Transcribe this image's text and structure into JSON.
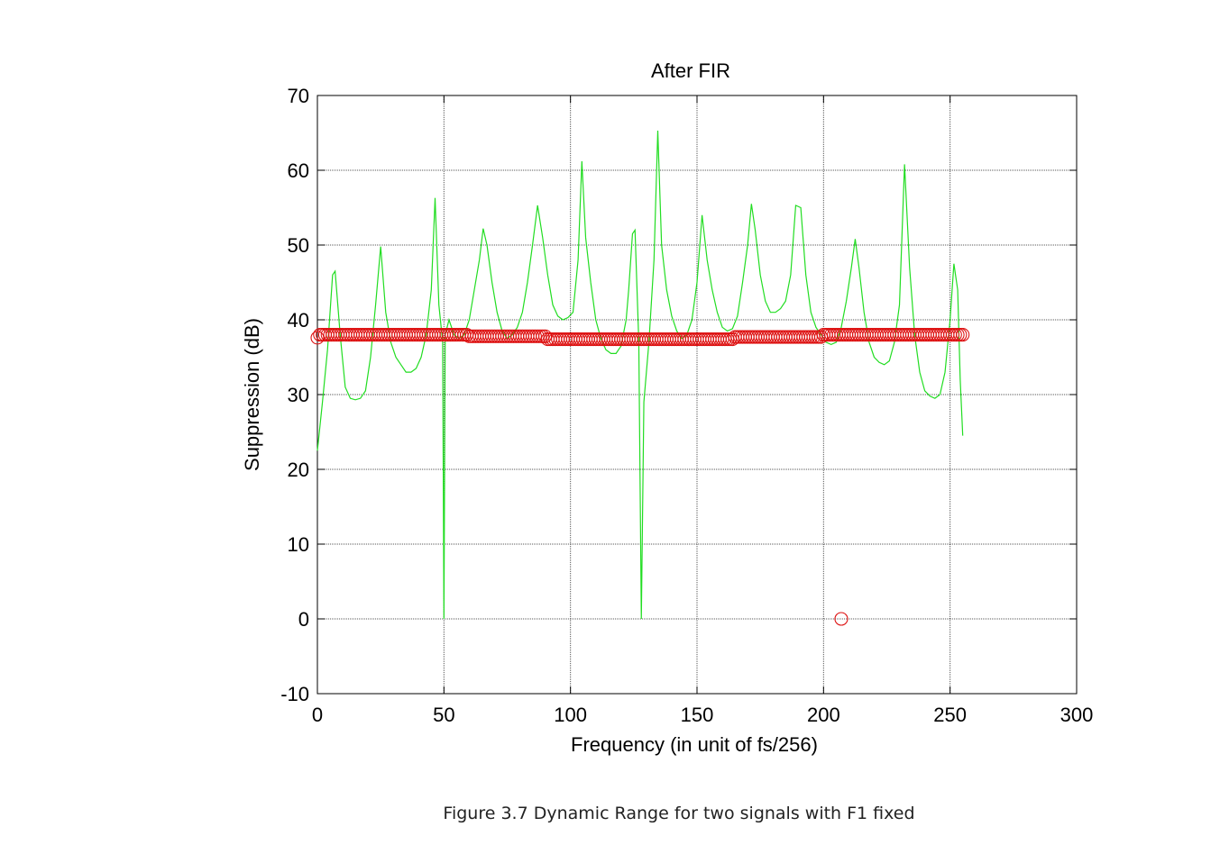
{
  "chart_data": {
    "type": "line",
    "title": "After FIR",
    "xlabel": "Frequency (in unit of fs/256)",
    "ylabel": "Suppression (dB)",
    "xlim": [
      0,
      300
    ],
    "ylim": [
      -10,
      70
    ],
    "xticks": [
      "0",
      "50",
      "100",
      "150",
      "200",
      "250",
      "300"
    ],
    "yticks": [
      "-10",
      "0",
      "10",
      "20",
      "30",
      "40",
      "50",
      "60",
      "70"
    ],
    "grid": true,
    "series": [
      {
        "marker": "line",
        "color": "#22dd22",
        "points": [
          [
            0,
            22.5
          ],
          [
            2,
            29
          ],
          [
            4,
            36
          ],
          [
            6,
            46
          ],
          [
            7,
            46.5
          ],
          [
            9,
            38
          ],
          [
            11,
            31
          ],
          [
            13,
            29.5
          ],
          [
            15,
            29.3
          ],
          [
            17,
            29.5
          ],
          [
            19,
            30.5
          ],
          [
            21,
            35
          ],
          [
            23,
            42
          ],
          [
            25,
            49.8
          ],
          [
            27,
            41
          ],
          [
            29,
            37
          ],
          [
            31,
            35
          ],
          [
            33,
            34
          ],
          [
            35,
            33
          ],
          [
            37,
            33
          ],
          [
            39,
            33.5
          ],
          [
            41,
            35
          ],
          [
            43,
            38
          ],
          [
            45,
            44
          ],
          [
            46.5,
            56.3
          ],
          [
            48,
            42
          ],
          [
            49.5,
            37
          ],
          [
            50,
            0
          ],
          [
            50.5,
            38
          ],
          [
            52,
            40
          ],
          [
            54,
            38
          ],
          [
            56,
            37.5
          ],
          [
            58,
            38
          ],
          [
            60,
            40
          ],
          [
            62,
            44
          ],
          [
            64,
            48
          ],
          [
            65.5,
            52.2
          ],
          [
            67,
            50
          ],
          [
            69,
            45
          ],
          [
            71,
            41
          ],
          [
            73,
            38.5
          ],
          [
            75,
            37.5
          ],
          [
            77,
            38
          ],
          [
            79,
            39
          ],
          [
            81,
            41
          ],
          [
            83,
            45
          ],
          [
            85,
            50
          ],
          [
            87,
            55.3
          ],
          [
            89,
            51
          ],
          [
            91,
            46
          ],
          [
            93,
            42
          ],
          [
            95,
            40.5
          ],
          [
            97,
            40
          ],
          [
            99,
            40.3
          ],
          [
            101,
            41
          ],
          [
            103,
            48
          ],
          [
            104.5,
            61.2
          ],
          [
            106,
            51
          ],
          [
            108,
            45
          ],
          [
            110,
            40
          ],
          [
            112,
            37.5
          ],
          [
            114,
            36
          ],
          [
            116,
            35.5
          ],
          [
            118,
            35.5
          ],
          [
            120,
            36.5
          ],
          [
            122,
            40
          ],
          [
            123,
            44
          ],
          [
            124.5,
            51.5
          ],
          [
            125.5,
            52
          ],
          [
            127,
            37
          ],
          [
            128,
            0
          ],
          [
            129,
            29
          ],
          [
            131,
            37
          ],
          [
            133,
            48
          ],
          [
            134.5,
            65.3
          ],
          [
            136,
            50
          ],
          [
            138,
            44
          ],
          [
            140,
            40.5
          ],
          [
            142,
            38.5
          ],
          [
            144,
            37.5
          ],
          [
            146,
            38
          ],
          [
            148,
            40
          ],
          [
            150,
            45
          ],
          [
            152,
            54
          ],
          [
            154,
            48
          ],
          [
            156,
            44
          ],
          [
            158,
            41
          ],
          [
            160,
            39
          ],
          [
            162,
            38.5
          ],
          [
            164,
            38.8
          ],
          [
            166,
            40.5
          ],
          [
            168,
            45
          ],
          [
            170,
            50
          ],
          [
            171.5,
            55.5
          ],
          [
            173,
            52
          ],
          [
            175,
            46
          ],
          [
            177,
            42.5
          ],
          [
            179,
            41
          ],
          [
            181,
            41
          ],
          [
            183,
            41.5
          ],
          [
            185,
            42.5
          ],
          [
            187,
            46
          ],
          [
            189,
            55.3
          ],
          [
            191,
            55
          ],
          [
            193,
            46
          ],
          [
            195,
            41
          ],
          [
            197,
            39
          ],
          [
            199,
            38
          ],
          [
            201,
            37
          ],
          [
            203,
            36.7
          ],
          [
            205,
            37
          ],
          [
            207,
            39
          ],
          [
            209,
            42.5
          ],
          [
            211,
            47
          ],
          [
            212.5,
            50.8
          ],
          [
            214,
            47
          ],
          [
            216,
            41
          ],
          [
            218,
            37
          ],
          [
            220,
            35
          ],
          [
            222,
            34.3
          ],
          [
            224,
            34
          ],
          [
            226,
            34.5
          ],
          [
            228,
            37
          ],
          [
            230,
            42
          ],
          [
            232,
            60.8
          ],
          [
            234,
            47
          ],
          [
            236,
            38
          ],
          [
            238,
            33
          ],
          [
            240,
            30.5
          ],
          [
            242,
            29.8
          ],
          [
            244,
            29.5
          ],
          [
            246,
            30
          ],
          [
            248,
            33
          ],
          [
            250,
            40
          ],
          [
            251.5,
            47.5
          ],
          [
            253,
            44
          ],
          [
            254,
            32
          ],
          [
            255,
            24.5
          ]
        ]
      },
      {
        "marker": "circle",
        "color": "#dd1111",
        "points": [
          [
            0,
            37.6
          ],
          [
            207,
            0
          ]
        ],
        "repeat_x_from": 1,
        "repeat_x_to": 255,
        "repeat_x_step": 1,
        "repeat_segments": [
          [
            1,
            59,
            38.0
          ],
          [
            60,
            90,
            37.8
          ],
          [
            91,
            164,
            37.4
          ],
          [
            165,
            199,
            37.7
          ],
          [
            200,
            255,
            38.0
          ]
        ]
      }
    ]
  },
  "caption": "Figure 3.7 Dynamic Range for two signals with F1 fixed"
}
